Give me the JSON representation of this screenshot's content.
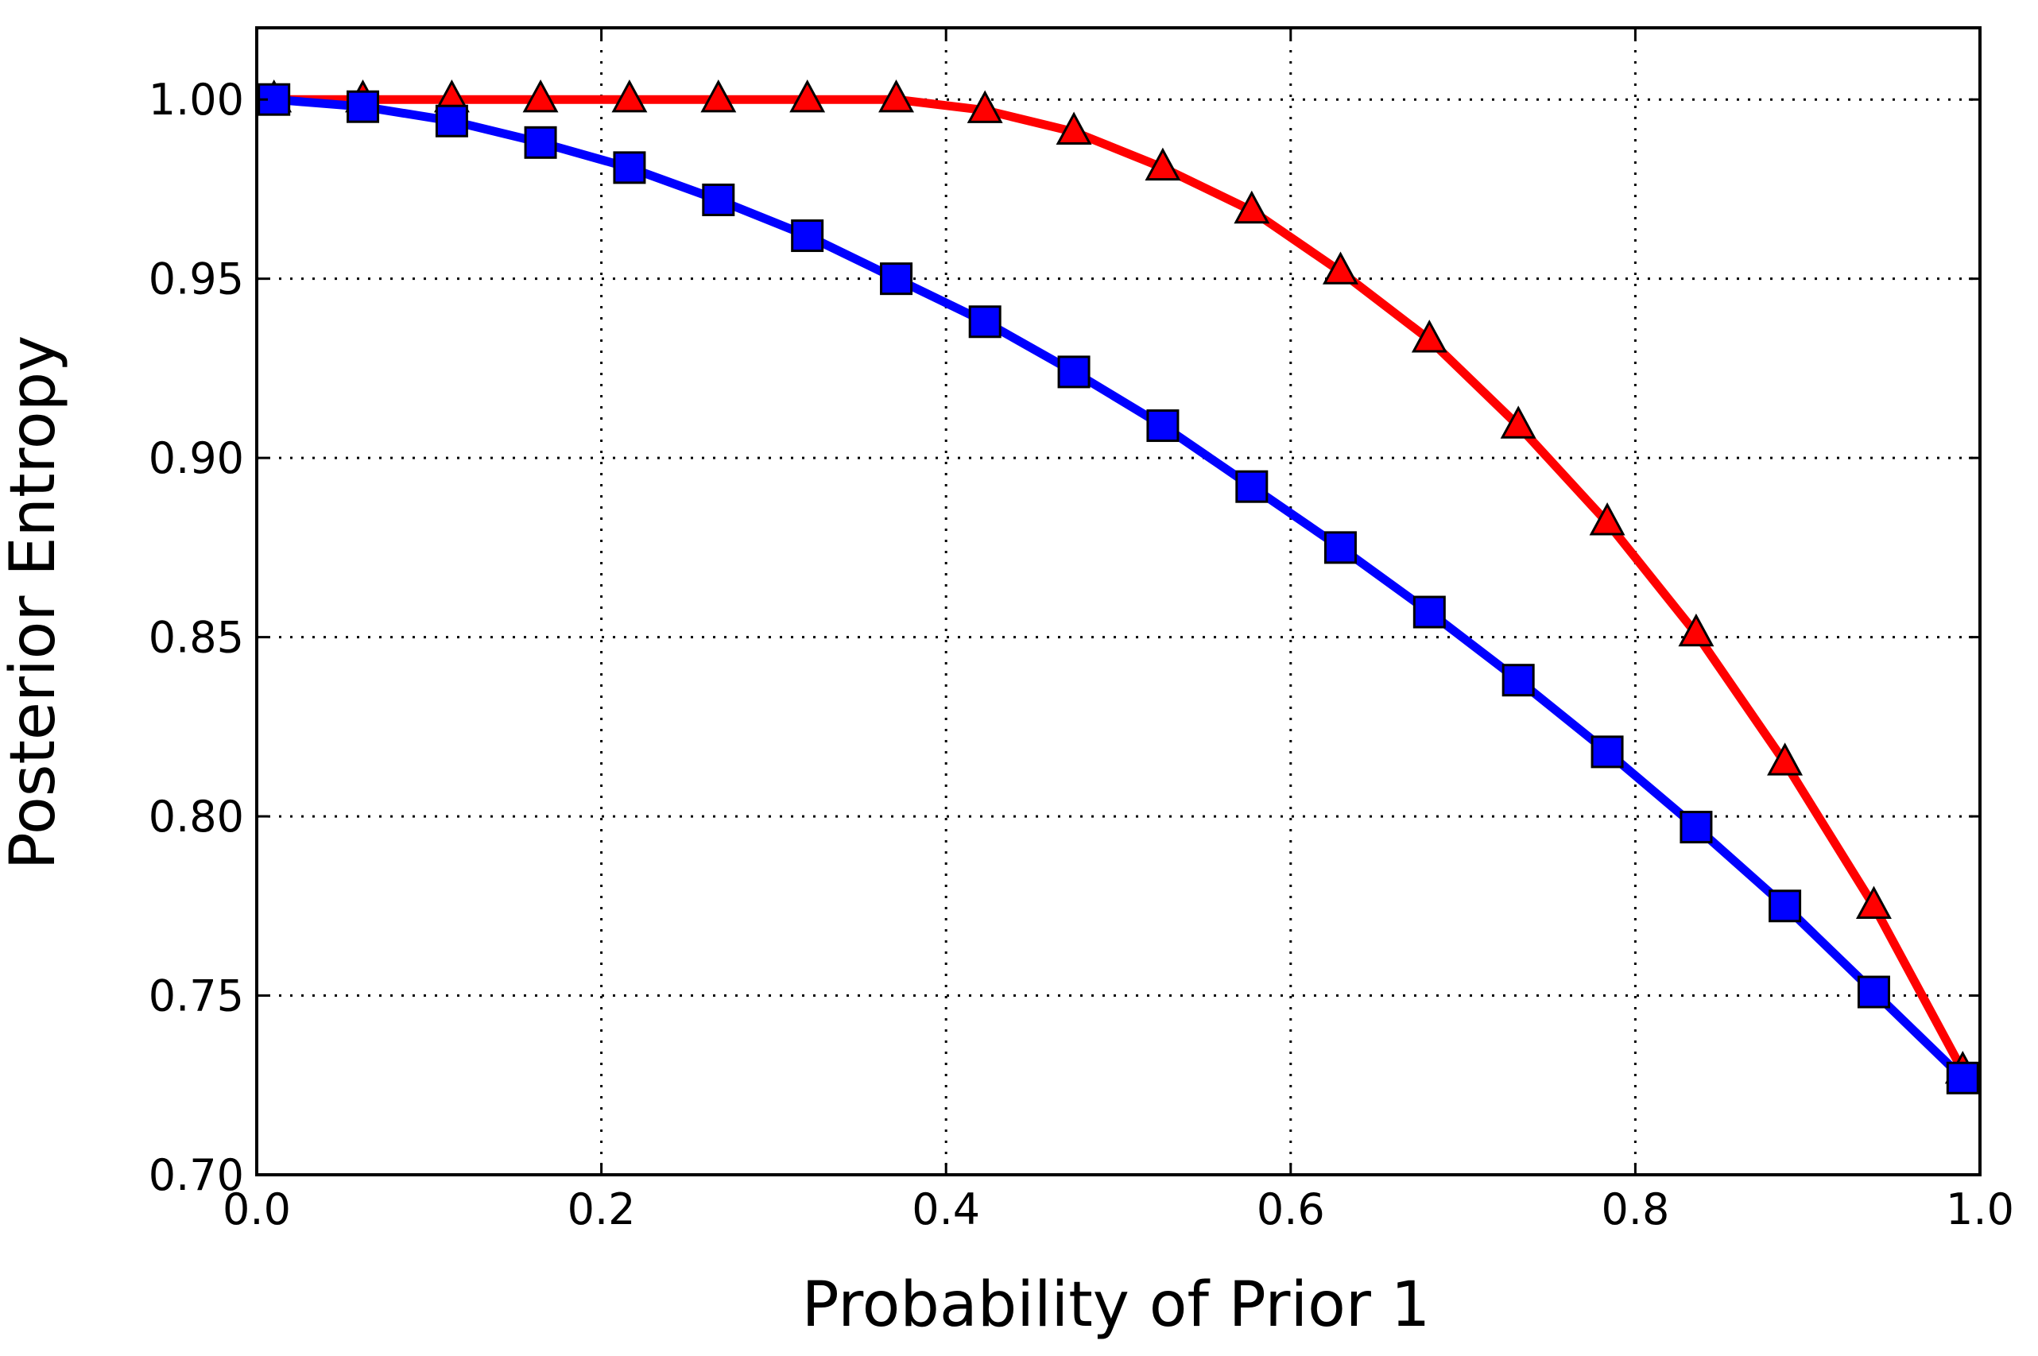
{
  "chart_data": {
    "type": "line",
    "title": "",
    "xlabel": "Probability of Prior 1",
    "ylabel": "Posterior Entropy",
    "xlim": [
      0.0,
      1.0
    ],
    "ylim": [
      0.7,
      1.02
    ],
    "grid": true,
    "x_ticks": [
      0.0,
      0.2,
      0.4,
      0.6,
      0.8,
      1.0
    ],
    "x_tick_labels": [
      "0.0",
      "0.2",
      "0.4",
      "0.6",
      "0.8",
      "1.0"
    ],
    "y_ticks": [
      0.7,
      0.75,
      0.8,
      0.85,
      0.9,
      0.95,
      1.0
    ],
    "y_tick_labels": [
      "0.70",
      "0.75",
      "0.80",
      "0.85",
      "0.90",
      "0.95",
      "1.00"
    ],
    "series": [
      {
        "name": "red-triangle-series",
        "color": "#ff0000",
        "marker": "triangle",
        "x": [
          0.01,
          0.0616,
          0.1132,
          0.1647,
          0.2163,
          0.2679,
          0.3195,
          0.3711,
          0.4226,
          0.4742,
          0.5258,
          0.5774,
          0.6289,
          0.6805,
          0.7321,
          0.7837,
          0.8353,
          0.8868,
          0.9384,
          0.99
        ],
        "values": [
          1.0,
          1.0,
          1.0,
          1.0,
          1.0,
          1.0,
          1.0,
          1.0,
          0.997,
          0.991,
          0.981,
          0.969,
          0.952,
          0.933,
          0.909,
          0.882,
          0.851,
          0.815,
          0.775,
          0.729
        ]
      },
      {
        "name": "blue-square-series",
        "color": "#0000ff",
        "marker": "square",
        "x": [
          0.01,
          0.0616,
          0.1132,
          0.1647,
          0.2163,
          0.2679,
          0.3195,
          0.3711,
          0.4226,
          0.4742,
          0.5258,
          0.5774,
          0.6289,
          0.6805,
          0.7321,
          0.7837,
          0.8353,
          0.8868,
          0.9384,
          0.99
        ],
        "values": [
          1.0,
          0.998,
          0.994,
          0.988,
          0.981,
          0.972,
          0.962,
          0.95,
          0.938,
          0.924,
          0.909,
          0.892,
          0.875,
          0.857,
          0.838,
          0.818,
          0.797,
          0.775,
          0.751,
          0.727
        ]
      }
    ]
  }
}
